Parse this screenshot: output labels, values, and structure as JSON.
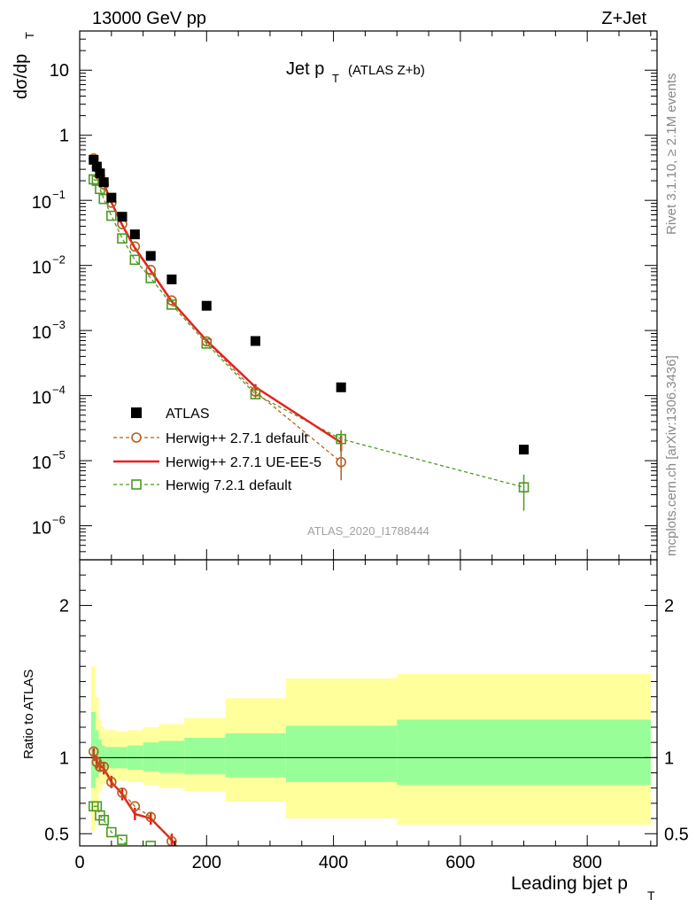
{
  "header": {
    "left": "13000 GeV pp",
    "right": "Z+Jet",
    "watermark": "ATLAS_2020_I1788444"
  },
  "plot_title": {
    "main": "Jet p",
    "sub": "T",
    "tag": "(ATLAS Z+b)"
  },
  "side_text": {
    "rivet": "Rivet 3.1.10, ≥ 2.1M events",
    "mcplots": "mcplots.cern.ch [arXiv:1306.3436]"
  },
  "axes": {
    "main_ylabel": {
      "main": "dσ/dp",
      "sub": "T"
    },
    "ratio_ylabel": "Ratio to ATLAS",
    "xlabel": {
      "main": "Leading bjet p",
      "sub": "T"
    },
    "x_ticks": [
      "0",
      "200",
      "400",
      "600",
      "800"
    ],
    "main_y_ticks": [
      {
        "v": 10,
        "base": "10",
        "exp": ""
      },
      {
        "v": 1,
        "base": "1",
        "exp": ""
      },
      {
        "v": 0.1,
        "base": "10",
        "exp": "−1"
      },
      {
        "v": 0.01,
        "base": "10",
        "exp": "−2"
      },
      {
        "v": 0.001,
        "base": "10",
        "exp": "−3"
      },
      {
        "v": 0.0001,
        "base": "10",
        "exp": "−4"
      },
      {
        "v": 1e-05,
        "base": "10",
        "exp": "−5"
      },
      {
        "v": 1e-06,
        "base": "10",
        "exp": "−6"
      }
    ],
    "ratio_y_ticks": [
      "0.5",
      "1",
      "2"
    ]
  },
  "legend": [
    {
      "label": "ATLAS",
      "style": "square"
    },
    {
      "label": "Herwig++ 2.7.1 default",
      "style": "circle-dashed"
    },
    {
      "label": "Herwig++ 2.7.1 UE-EE-5",
      "style": "solid"
    },
    {
      "label": "Herwig 7.2.1 default",
      "style": "square-dashed"
    }
  ],
  "chart_data": {
    "type": "scatter",
    "xlim": [
      0,
      910
    ],
    "ylim": [
      3e-07,
      40
    ],
    "yscale": "log",
    "ratio_ylim": [
      0.42,
      2.3
    ],
    "colors": {
      "atlas": "#000000",
      "h271": "#b35f1e",
      "ue": "#e8211c",
      "h721": "#4c9a23",
      "band_inner": "#98ff98",
      "band_outer": "#ffff9c"
    },
    "series": [
      {
        "name": "ATLAS",
        "x": [
          22,
          27,
          32,
          38,
          50,
          67,
          87,
          112,
          145,
          200,
          277,
          412,
          700
        ],
        "y": [
          0.42,
          0.33,
          0.26,
          0.19,
          0.11,
          0.056,
          0.03,
          0.014,
          0.0061,
          0.0024,
          0.00069,
          0.000134,
          1.48e-05
        ]
      },
      {
        "name": "Herwig++ 2.7.1 default",
        "x": [
          22,
          27,
          32,
          38,
          50,
          67,
          87,
          112,
          145,
          200,
          277,
          412
        ],
        "y": [
          0.44,
          0.32,
          0.24,
          0.175,
          0.092,
          0.043,
          0.0195,
          0.0085,
          0.0029,
          0.00068,
          0.000115,
          9.5e-06
        ],
        "yerr": [
          0.004,
          0.003,
          0.002,
          0.002,
          0.001,
          0.0005,
          0.0003,
          0.0001,
          5e-05,
          2e-05,
          1e-05,
          4.5e-06
        ]
      },
      {
        "name": "Herwig++ 2.7.1 UE-EE-5",
        "x": [
          22,
          27,
          32,
          38,
          50,
          67,
          87,
          112,
          145,
          200,
          277,
          412
        ],
        "y": [
          0.43,
          0.32,
          0.25,
          0.18,
          0.093,
          0.042,
          0.0185,
          0.0083,
          0.0028,
          0.0007,
          0.000135,
          1.9e-05
        ],
        "yerr": [
          0.004,
          0.003,
          0.002,
          0.002,
          0.001,
          0.0005,
          0.0003,
          0.0001,
          5e-05,
          2e-05,
          1.5e-05,
          5e-06
        ]
      },
      {
        "name": "Herwig 7.2.1 default",
        "x": [
          22,
          27,
          32,
          38,
          50,
          67,
          87,
          112,
          145,
          200,
          277,
          412,
          700
        ],
        "y": [
          0.21,
          0.2,
          0.15,
          0.105,
          0.058,
          0.026,
          0.0122,
          0.0064,
          0.0025,
          0.00063,
          0.000105,
          2.15e-05,
          3.9e-06
        ],
        "yerr": [
          0.003,
          0.003,
          0.002,
          0.001,
          0.001,
          0.0005,
          0.0003,
          0.0003,
          0.0001,
          3e-05,
          1.5e-05,
          8e-06,
          2.2e-06
        ]
      }
    ],
    "ratio": {
      "h271": {
        "x": [
          22,
          27,
          32,
          38,
          50,
          67,
          87,
          112,
          145
        ],
        "y": [
          1.04,
          0.97,
          0.94,
          0.94,
          0.84,
          0.77,
          0.68,
          0.61,
          0.45
        ]
      },
      "ue": {
        "x": [
          22,
          27,
          32,
          38,
          50,
          67,
          87,
          112,
          145,
          172
        ],
        "y": [
          1.02,
          0.97,
          0.95,
          0.93,
          0.84,
          0.76,
          0.63,
          0.6,
          0.46,
          0.3
        ]
      },
      "h721": {
        "x": [
          22,
          27,
          32,
          38,
          50,
          67,
          87,
          112
        ],
        "y": [
          0.68,
          0.68,
          0.62,
          0.59,
          0.51,
          0.46,
          0.37,
          0.42
        ]
      },
      "bands": [
        {
          "x0": 18,
          "x1": 25,
          "in_lo": 0.8,
          "in_hi": 1.3,
          "out_lo": 0.52,
          "out_hi": 1.6
        },
        {
          "x0": 25,
          "x1": 30,
          "in_lo": 0.87,
          "in_hi": 1.18,
          "out_lo": 0.65,
          "out_hi": 1.4
        },
        {
          "x0": 30,
          "x1": 35,
          "in_lo": 0.9,
          "in_hi": 1.12,
          "out_lo": 0.78,
          "out_hi": 1.25
        },
        {
          "x0": 35,
          "x1": 40,
          "in_lo": 0.92,
          "in_hi": 1.08,
          "out_lo": 0.82,
          "out_hi": 1.2
        },
        {
          "x0": 40,
          "x1": 60,
          "in_lo": 0.93,
          "in_hi": 1.07,
          "out_lo": 0.84,
          "out_hi": 1.18
        },
        {
          "x0": 60,
          "x1": 75,
          "in_lo": 0.93,
          "in_hi": 1.07,
          "out_lo": 0.85,
          "out_hi": 1.17
        },
        {
          "x0": 75,
          "x1": 100,
          "in_lo": 0.92,
          "in_hi": 1.08,
          "out_lo": 0.84,
          "out_hi": 1.18
        },
        {
          "x0": 100,
          "x1": 125,
          "in_lo": 0.91,
          "in_hi": 1.1,
          "out_lo": 0.82,
          "out_hi": 1.2
        },
        {
          "x0": 125,
          "x1": 165,
          "in_lo": 0.9,
          "in_hi": 1.11,
          "out_lo": 0.8,
          "out_hi": 1.22
        },
        {
          "x0": 165,
          "x1": 230,
          "in_lo": 0.89,
          "in_hi": 1.13,
          "out_lo": 0.78,
          "out_hi": 1.26
        },
        {
          "x0": 230,
          "x1": 325,
          "in_lo": 0.87,
          "in_hi": 1.16,
          "out_lo": 0.71,
          "out_hi": 1.39
        },
        {
          "x0": 325,
          "x1": 500,
          "in_lo": 0.84,
          "in_hi": 1.21,
          "out_lo": 0.6,
          "out_hi": 1.52
        },
        {
          "x0": 500,
          "x1": 900,
          "in_lo": 0.82,
          "in_hi": 1.25,
          "out_lo": 0.56,
          "out_hi": 1.55
        }
      ]
    }
  }
}
